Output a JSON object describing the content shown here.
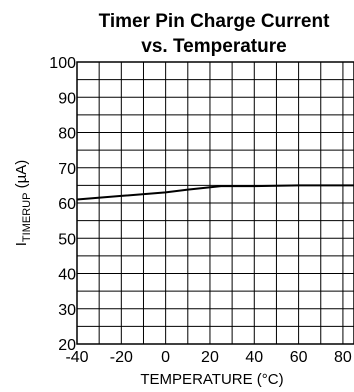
{
  "chart_data": {
    "type": "line",
    "title_lines": [
      "Timer Pin Charge Current",
      "vs. Temperature"
    ],
    "xlabel": "TEMPERATURE (°C)",
    "ylabel_main": "I",
    "ylabel_sub": "TIMERUP",
    "ylabel_unit": " (µA)",
    "xlim": [
      -40,
      85
    ],
    "ylim": [
      20,
      100
    ],
    "x_ticks": [
      -40,
      -20,
      0,
      20,
      40,
      60,
      80
    ],
    "y_ticks": [
      20,
      30,
      40,
      50,
      60,
      70,
      80,
      90,
      100
    ],
    "x_minor_step": 10,
    "y_minor_step": 5,
    "grid": true,
    "series": [
      {
        "x": [
          -40,
          -20,
          0,
          10,
          25,
          40,
          60,
          85
        ],
        "y": [
          61,
          62,
          63,
          63.8,
          64.8,
          64.8,
          65,
          65
        ]
      }
    ]
  }
}
